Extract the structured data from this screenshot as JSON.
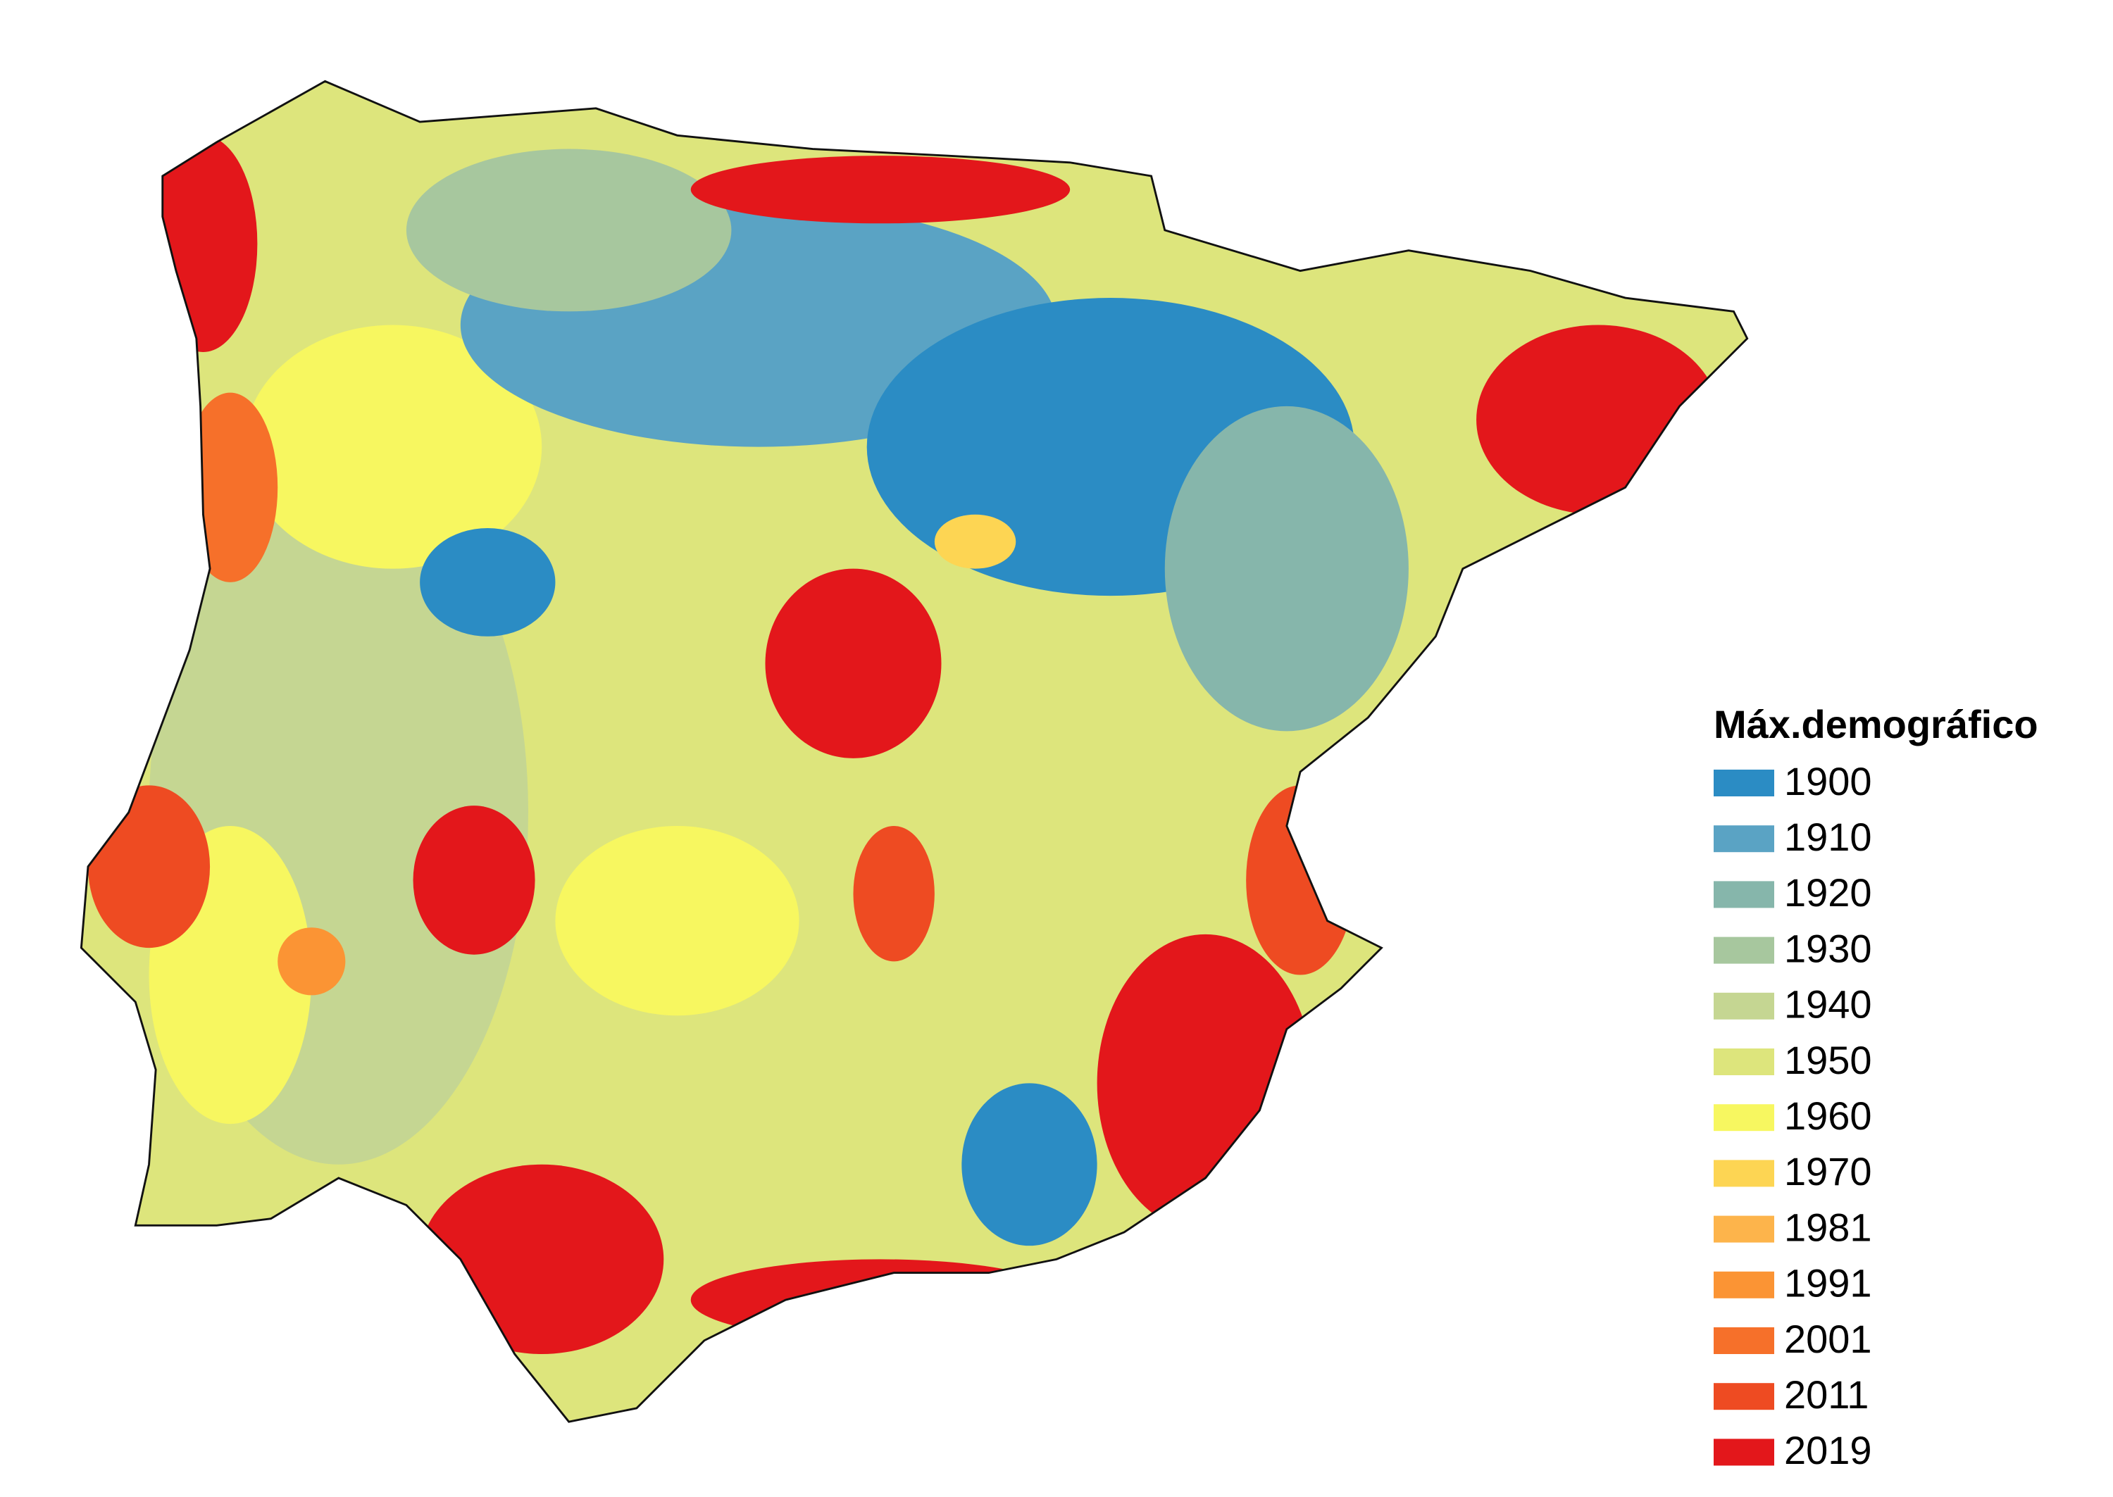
{
  "legend": {
    "title": "Máx.demográfico",
    "items": [
      {
        "label": "1900",
        "color": "#2b8cc4"
      },
      {
        "label": "1910",
        "color": "#5aa3c4"
      },
      {
        "label": "1920",
        "color": "#86b6ab"
      },
      {
        "label": "1930",
        "color": "#a7c79e"
      },
      {
        "label": "1940",
        "color": "#c5d692"
      },
      {
        "label": "1950",
        "color": "#dde57c"
      },
      {
        "label": "1960",
        "color": "#f7f760"
      },
      {
        "label": "1970",
        "color": "#fdd553"
      },
      {
        "label": "1981",
        "color": "#fdb44b"
      },
      {
        "label": "1991",
        "color": "#fb9434"
      },
      {
        "label": "2001",
        "color": "#f6702a"
      },
      {
        "label": "2011",
        "color": "#ee4b22"
      },
      {
        "label": "2019",
        "color": "#e3171b"
      }
    ]
  }
}
